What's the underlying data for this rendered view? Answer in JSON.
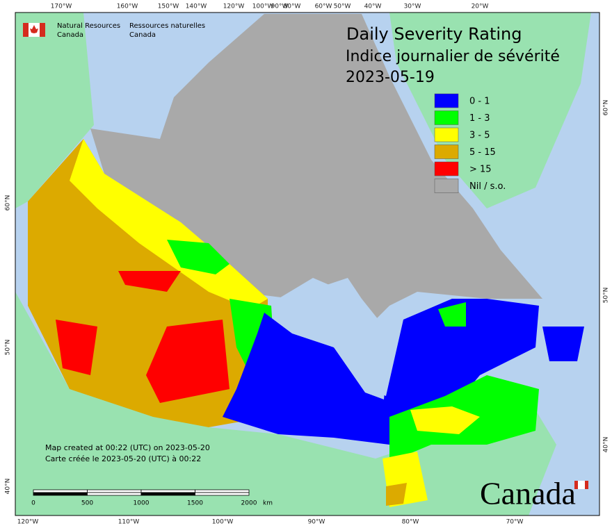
{
  "header": {
    "agency_en": "Natural Resources",
    "country_en": "Canada",
    "agency_fr": "Ressources naturelles",
    "country_fr": "Canada"
  },
  "title": {
    "en": "Daily Severity Rating",
    "fr": "Indice journalier de sévérité",
    "date": "2023-05-19"
  },
  "legend": [
    {
      "label": "0 - 1",
      "color": "#0000ff"
    },
    {
      "label": "1 - 3",
      "color": "#00ff00"
    },
    {
      "label": "3 - 5",
      "color": "#ffff00"
    },
    {
      "label": "5 - 15",
      "color": "#dcaa00"
    },
    {
      "label": "> 15",
      "color": "#ff0000"
    },
    {
      "label": "Nil / s.o.",
      "color": "#a9a9a9"
    }
  ],
  "graticule": {
    "top": [
      "170°W",
      "160°W",
      "150°W",
      "140°W",
      "120°W",
      "100°W",
      "90°W",
      "80°W",
      "60°W",
      "50°W",
      "40°W",
      "30°W",
      "20°W"
    ],
    "bottom": [
      "120°W",
      "110°W",
      "100°W",
      "90°W",
      "80°W",
      "70°W"
    ],
    "left": [
      "60°N",
      "50°N",
      "40°N"
    ],
    "right": [
      "60°N",
      "50°N",
      "40°N"
    ]
  },
  "scale_bar": {
    "ticks": [
      "0",
      "500",
      "1000",
      "1500",
      "2000"
    ],
    "unit": "km"
  },
  "footer": {
    "created_en": "Map created at 00:22 (UTC) on 2023-05-20",
    "created_fr": "Carte créée le 2023-05-20 (UTC) à 00:22"
  },
  "wordmark": "Canada"
}
